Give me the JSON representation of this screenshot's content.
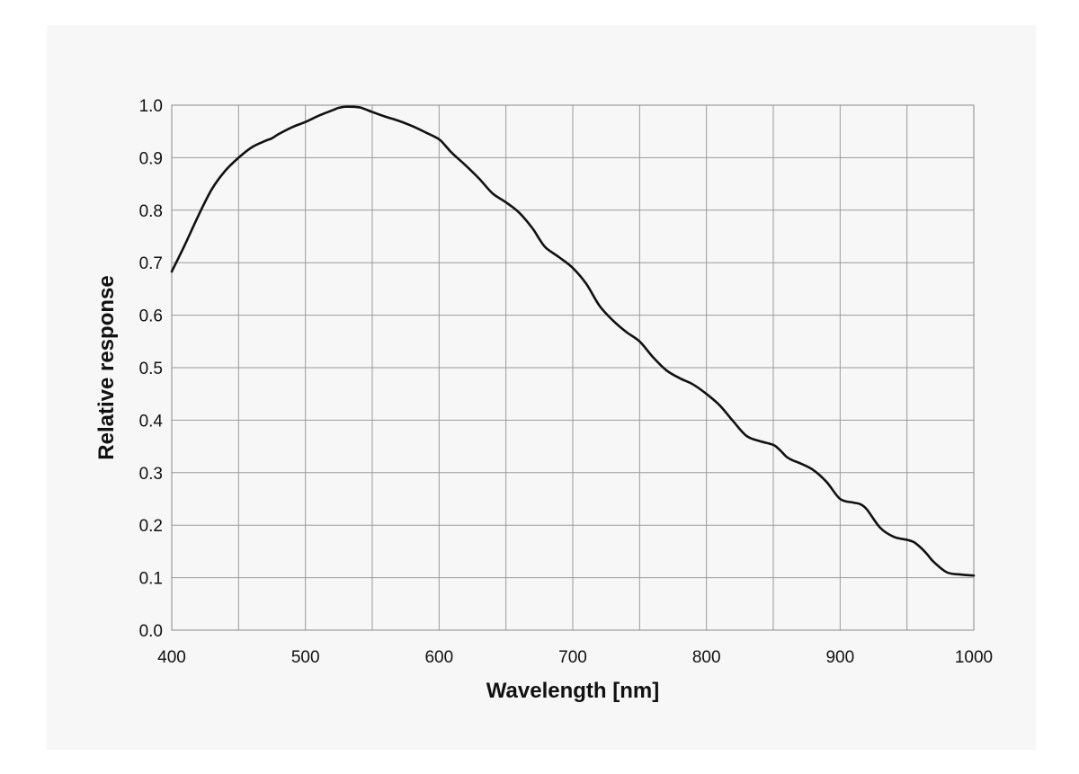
{
  "chart_data": {
    "type": "line",
    "title": "",
    "xlabel": "Wavelength [nm]",
    "ylabel": "Relative response",
    "xlim": [
      400,
      1000
    ],
    "ylim": [
      0,
      1.0
    ],
    "x_ticks": [
      400,
      500,
      600,
      700,
      800,
      900,
      1000
    ],
    "x_tick_labels": [
      "400",
      "500",
      "600",
      "700",
      "800",
      "900",
      "1000"
    ],
    "x_grid": [
      400,
      450,
      500,
      550,
      600,
      650,
      700,
      750,
      800,
      850,
      900,
      950,
      1000
    ],
    "y_ticks": [
      0,
      0.1,
      0.2,
      0.3,
      0.4,
      0.5,
      0.6,
      0.7,
      0.8,
      0.9,
      1.0
    ],
    "y_tick_labels": [
      "0.0",
      "0.1",
      "0.2",
      "0.3",
      "0.4",
      "0.5",
      "0.6",
      "0.7",
      "0.8",
      "0.9",
      "1.0"
    ],
    "grid": true,
    "line_color": "#111111",
    "series": [
      {
        "x": [
          400,
          410,
          420,
          430,
          440,
          450,
          460,
          470,
          475,
          480,
          490,
          500,
          510,
          520,
          525,
          530,
          540,
          545,
          550,
          560,
          570,
          580,
          590,
          600,
          605,
          610,
          620,
          630,
          640,
          650,
          660,
          670,
          675,
          680,
          690,
          700,
          710,
          720,
          730,
          740,
          750,
          760,
          770,
          780,
          790,
          800,
          810,
          820,
          830,
          840,
          850,
          855,
          860,
          865,
          870,
          880,
          890,
          900,
          910,
          915,
          920,
          930,
          940,
          950,
          955,
          960,
          965,
          970,
          980,
          990,
          1000
        ],
        "y": [
          0.683,
          0.735,
          0.79,
          0.84,
          0.875,
          0.9,
          0.92,
          0.932,
          0.937,
          0.945,
          0.958,
          0.968,
          0.98,
          0.99,
          0.995,
          0.997,
          0.996,
          0.992,
          0.987,
          0.978,
          0.97,
          0.96,
          0.948,
          0.935,
          0.922,
          0.908,
          0.885,
          0.86,
          0.832,
          0.815,
          0.795,
          0.765,
          0.745,
          0.728,
          0.71,
          0.69,
          0.66,
          0.618,
          0.59,
          0.568,
          0.55,
          0.52,
          0.495,
          0.48,
          0.468,
          0.45,
          0.428,
          0.398,
          0.37,
          0.36,
          0.353,
          0.343,
          0.33,
          0.323,
          0.318,
          0.305,
          0.282,
          0.25,
          0.243,
          0.24,
          0.23,
          0.195,
          0.178,
          0.172,
          0.168,
          0.158,
          0.145,
          0.13,
          0.11,
          0.106,
          0.104
        ]
      }
    ]
  }
}
